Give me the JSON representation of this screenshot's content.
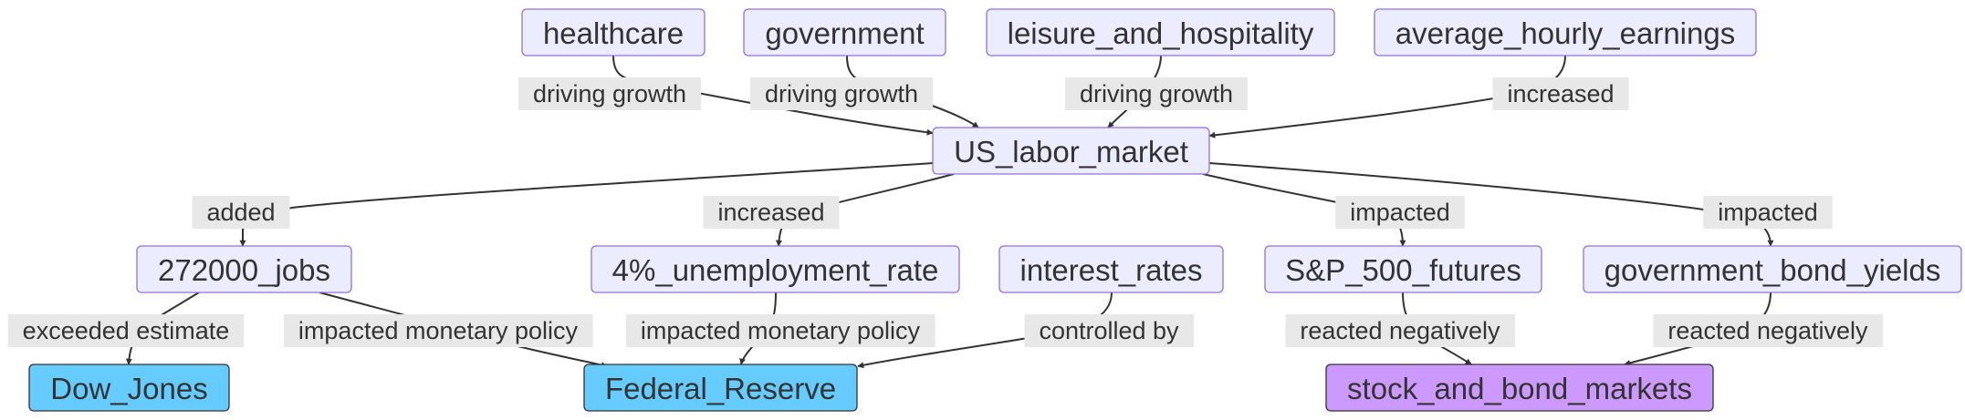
{
  "colors": {
    "node_default_fill": "#ececff",
    "node_default_stroke": "#9370db",
    "node_blue_fill": "#66ccff",
    "node_blue_stroke": "#333333",
    "node_purple_fill": "#cc99ff",
    "node_purple_stroke": "#333333",
    "edge": "#333333",
    "label_bg": "#e8e8e8",
    "text": "#333333"
  },
  "nodes": [
    {
      "id": "healthcare",
      "label": "healthcare",
      "style": "default"
    },
    {
      "id": "government",
      "label": "government",
      "style": "default"
    },
    {
      "id": "leisure",
      "label": "leisure_and_hospitality",
      "style": "default"
    },
    {
      "id": "earnings",
      "label": "average_hourly_earnings",
      "style": "default"
    },
    {
      "id": "labor",
      "label": "US_labor_market",
      "style": "default"
    },
    {
      "id": "jobs",
      "label": "272000_jobs",
      "style": "default"
    },
    {
      "id": "unemployment",
      "label": "4%_unemployment_rate",
      "style": "default"
    },
    {
      "id": "interest",
      "label": "interest_rates",
      "style": "default"
    },
    {
      "id": "sp500",
      "label": "S&P_500_futures",
      "style": "default"
    },
    {
      "id": "bonds",
      "label": "government_bond_yields",
      "style": "default"
    },
    {
      "id": "dow",
      "label": "Dow_Jones",
      "style": "blue"
    },
    {
      "id": "fed",
      "label": "Federal_Reserve",
      "style": "blue"
    },
    {
      "id": "markets",
      "label": "stock_and_bond_markets",
      "style": "purple"
    }
  ],
  "edges": [
    {
      "from": "healthcare",
      "to": "labor",
      "label": "driving growth"
    },
    {
      "from": "government",
      "to": "labor",
      "label": "driving growth"
    },
    {
      "from": "leisure",
      "to": "labor",
      "label": "driving growth"
    },
    {
      "from": "earnings",
      "to": "labor",
      "label": "increased"
    },
    {
      "from": "labor",
      "to": "jobs",
      "label": "added"
    },
    {
      "from": "labor",
      "to": "unemployment",
      "label": "increased"
    },
    {
      "from": "labor",
      "to": "sp500",
      "label": "impacted"
    },
    {
      "from": "labor",
      "to": "bonds",
      "label": "impacted"
    },
    {
      "from": "jobs",
      "to": "dow",
      "label": "exceeded estimate"
    },
    {
      "from": "jobs",
      "to": "fed",
      "label": "impacted monetary policy"
    },
    {
      "from": "unemployment",
      "to": "fed",
      "label": "impacted monetary policy"
    },
    {
      "from": "interest",
      "to": "fed",
      "label": "controlled by"
    },
    {
      "from": "sp500",
      "to": "markets",
      "label": "reacted negatively"
    },
    {
      "from": "bonds",
      "to": "markets",
      "label": "reacted negatively"
    }
  ]
}
